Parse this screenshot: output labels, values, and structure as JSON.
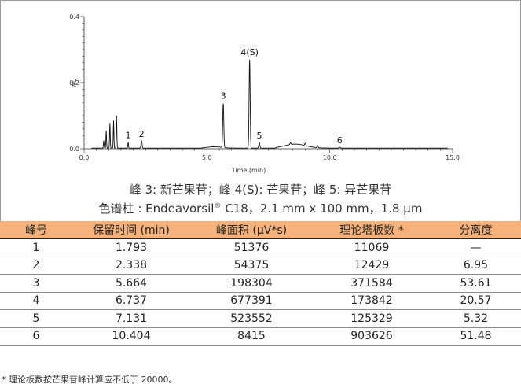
{
  "chart_data": {
    "type": "line",
    "xlabel": "Time (min)",
    "ylabel": "AU",
    "xlim": [
      0,
      15
    ],
    "ylim": [
      0,
      0.4
    ],
    "x_ticks": [
      "0.0",
      "5.0",
      "10.0",
      "15.0"
    ],
    "y_ticks": [
      "0.0",
      "0.2",
      "0.4"
    ],
    "peaks": [
      {
        "label": "1",
        "x": 1.793,
        "y": 0.02
      },
      {
        "label": "2",
        "x": 2.338,
        "y": 0.024
      },
      {
        "label": "3",
        "x": 5.664,
        "y": 0.139
      },
      {
        "label": "4(S)",
        "x": 6.737,
        "y": 0.272
      },
      {
        "label": "5",
        "x": 7.131,
        "y": 0.019
      },
      {
        "label": "6",
        "x": 10.404,
        "y": 0.005
      }
    ],
    "other_peaks": [
      {
        "x": 0.8,
        "y": 0.025
      },
      {
        "x": 0.9,
        "y": 0.055
      },
      {
        "x": 1.05,
        "y": 0.078
      },
      {
        "x": 1.2,
        "y": 0.085
      },
      {
        "x": 1.32,
        "y": 0.1
      },
      {
        "x": 8.4,
        "y": 0.018
      },
      {
        "x": 9.0,
        "y": 0.017
      },
      {
        "x": 9.5,
        "y": 0.01
      }
    ]
  },
  "caption": {
    "line1": "峰 3: 新芒果苷；峰 4(S): 芒果苷；峰 5: 异芒果苷",
    "line2_prefix": "色谱柱 : Endeavorsil",
    "line2_sup": "®",
    "line2_suffix": " C18，2.1 mm x 100 mm，1.8 μm"
  },
  "table": {
    "headers": [
      "峰号",
      "保留时间 (min)",
      "峰面积 (μV*s)",
      "理论塔板数 *",
      "分离度"
    ],
    "rows": [
      [
        "1",
        "1.793",
        "51376",
        "11069",
        "—"
      ],
      [
        "2",
        "2.338",
        "54375",
        "12429",
        "6.95"
      ],
      [
        "3",
        "5.664",
        "198304",
        "371584",
        "53.61"
      ],
      [
        "4",
        "6.737",
        "677391",
        "173842",
        "20.57"
      ],
      [
        "5",
        "7.131",
        "523552",
        "125329",
        "5.32"
      ],
      [
        "6",
        "10.404",
        "8415",
        "903626",
        "51.48"
      ]
    ]
  },
  "footnote": "* 理论板数按芒果苷峰计算应不低于 20000。",
  "colors": {
    "header_bg": "#f6b27a",
    "trace": "#111111"
  }
}
